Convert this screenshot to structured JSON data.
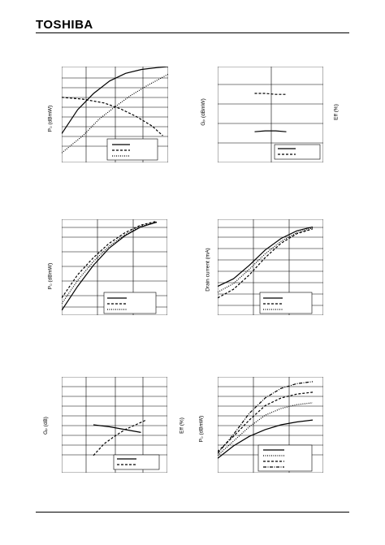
{
  "header": {
    "brand": "TOSHIBA"
  },
  "axis_labels": {
    "pa": "P₀ (dBmW)",
    "pb": "Gₚ (dBmW)",
    "pb_right": "Eff (%)",
    "pc": "P₀ (dBmW)",
    "pd": "Drain current (mA)",
    "pe": "Gₚ (dB)",
    "pe_right": "Eff (%)",
    "pf": "P₀ (dBmW)"
  },
  "chart_data": [
    {
      "type": "line",
      "series": [
        {
          "style": "solid",
          "x": [
            0,
            0.15,
            0.3,
            0.45,
            0.6,
            0.75,
            0.9,
            1
          ],
          "y": [
            0.3,
            0.55,
            0.72,
            0.85,
            0.93,
            0.97,
            0.99,
            1.0
          ]
        },
        {
          "style": "dotted",
          "x": [
            0,
            0.2,
            0.35,
            0.5,
            0.65,
            0.8,
            1
          ],
          "y": [
            0.1,
            0.28,
            0.45,
            0.58,
            0.7,
            0.8,
            0.92
          ]
        },
        {
          "style": "dashed",
          "x": [
            0,
            0.2,
            0.4,
            0.55,
            0.7,
            0.85,
            0.95
          ],
          "y": [
            0.68,
            0.66,
            0.62,
            0.56,
            0.48,
            0.38,
            0.28
          ]
        }
      ]
    },
    {
      "type": "line",
      "series": [
        {
          "style": "solid",
          "x": [
            0.35,
            0.45,
            0.55,
            0.65
          ],
          "y": [
            0.32,
            0.33,
            0.33,
            0.32
          ]
        },
        {
          "style": "dashed",
          "x": [
            0.35,
            0.45,
            0.55,
            0.65
          ],
          "y": [
            0.72,
            0.72,
            0.71,
            0.71
          ]
        }
      ]
    },
    {
      "type": "line",
      "series": [
        {
          "style": "solid",
          "x": [
            0,
            0.15,
            0.3,
            0.45,
            0.6,
            0.75,
            0.9
          ],
          "y": [
            0.05,
            0.3,
            0.52,
            0.7,
            0.83,
            0.92,
            0.97
          ]
        },
        {
          "style": "dashed",
          "x": [
            0,
            0.15,
            0.3,
            0.45,
            0.6,
            0.75,
            0.9
          ],
          "y": [
            0.18,
            0.42,
            0.6,
            0.75,
            0.86,
            0.94,
            0.98
          ]
        },
        {
          "style": "dotted",
          "x": [
            0,
            0.15,
            0.3,
            0.45,
            0.6,
            0.75,
            0.9
          ],
          "y": [
            0.12,
            0.36,
            0.56,
            0.72,
            0.84,
            0.93,
            0.97
          ]
        }
      ]
    },
    {
      "type": "line",
      "series": [
        {
          "style": "solid",
          "x": [
            0,
            0.15,
            0.3,
            0.45,
            0.6,
            0.75,
            0.9
          ],
          "y": [
            0.3,
            0.38,
            0.52,
            0.68,
            0.8,
            0.88,
            0.92
          ]
        },
        {
          "style": "dashed",
          "x": [
            0,
            0.15,
            0.3,
            0.45,
            0.6,
            0.75,
            0.9
          ],
          "y": [
            0.18,
            0.27,
            0.42,
            0.6,
            0.75,
            0.85,
            0.9
          ]
        },
        {
          "style": "dotted",
          "x": [
            0,
            0.15,
            0.3,
            0.45,
            0.6,
            0.75,
            0.9
          ],
          "y": [
            0.24,
            0.33,
            0.48,
            0.64,
            0.77,
            0.86,
            0.91
          ]
        }
      ]
    },
    {
      "type": "line",
      "series": [
        {
          "style": "solid",
          "x": [
            0.3,
            0.45,
            0.6,
            0.75
          ],
          "y": [
            0.5,
            0.48,
            0.45,
            0.42
          ]
        },
        {
          "style": "dashed",
          "x": [
            0.3,
            0.4,
            0.5,
            0.6,
            0.7,
            0.8
          ],
          "y": [
            0.18,
            0.3,
            0.38,
            0.45,
            0.5,
            0.55
          ]
        }
      ]
    },
    {
      "type": "line",
      "series": [
        {
          "style": "solid",
          "x": [
            0,
            0.15,
            0.3,
            0.45,
            0.6,
            0.75,
            0.9
          ],
          "y": [
            0.15,
            0.28,
            0.38,
            0.45,
            0.5,
            0.53,
            0.55
          ]
        },
        {
          "style": "dotted",
          "x": [
            0,
            0.15,
            0.3,
            0.45,
            0.6,
            0.75,
            0.9
          ],
          "y": [
            0.18,
            0.33,
            0.48,
            0.6,
            0.67,
            0.71,
            0.73
          ]
        },
        {
          "style": "dashed",
          "x": [
            0,
            0.15,
            0.3,
            0.45,
            0.6,
            0.75,
            0.9
          ],
          "y": [
            0.22,
            0.38,
            0.55,
            0.7,
            0.78,
            0.82,
            0.84
          ]
        },
        {
          "style": "dashdot",
          "x": [
            0,
            0.15,
            0.3,
            0.45,
            0.6,
            0.75,
            0.9
          ],
          "y": [
            0.2,
            0.4,
            0.62,
            0.78,
            0.88,
            0.93,
            0.95
          ]
        }
      ]
    }
  ]
}
